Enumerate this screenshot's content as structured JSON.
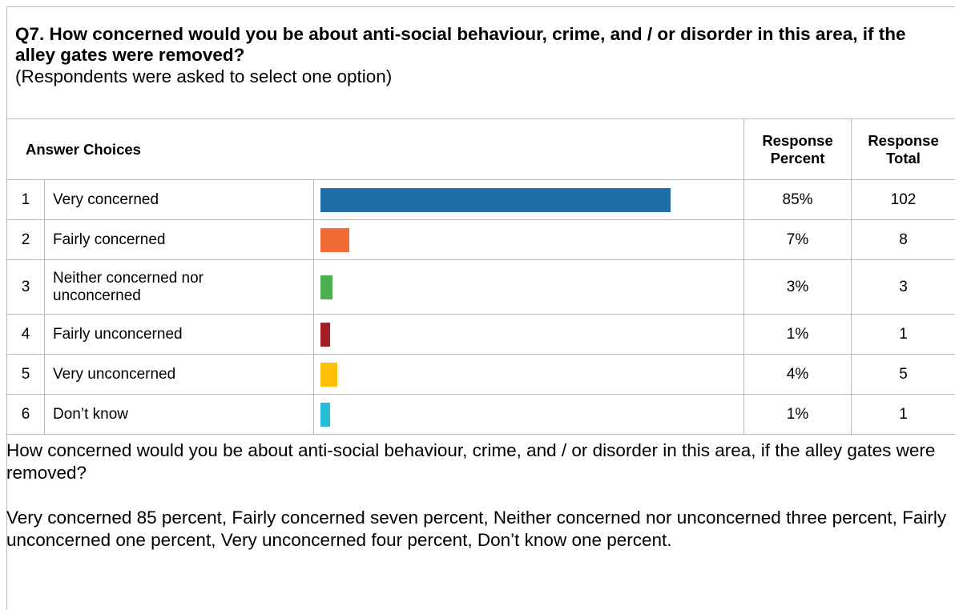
{
  "question": {
    "title": "Q7. How concerned would you be about anti-social behaviour, crime, and / or disorder in this area, if the alley gates were removed?",
    "subtitle": "(Respondents were asked to select one option)"
  },
  "table": {
    "headers": {
      "choices": "Answer Choices",
      "percent_line1": "Response",
      "percent_line2": "Percent",
      "total_line1": "Response",
      "total_line2": "Total"
    },
    "rows": [
      {
        "index": "1",
        "label": "Very concerned",
        "percent": "85%",
        "total": "102",
        "value": 85,
        "color": "#1f6ea8"
      },
      {
        "index": "2",
        "label": "Fairly concerned",
        "percent": "7%",
        "total": "8",
        "value": 7,
        "color": "#f26a36"
      },
      {
        "index": "3",
        "label": "Neither concerned nor unconcerned",
        "percent": "3%",
        "total": "3",
        "value": 3,
        "color": "#4caf50"
      },
      {
        "index": "4",
        "label": "Fairly unconcerned",
        "percent": "1%",
        "total": "1",
        "value": 1,
        "color": "#a61d24"
      },
      {
        "index": "5",
        "label": "Very unconcerned",
        "percent": "4%",
        "total": "5",
        "value": 4,
        "color": "#ffc107"
      },
      {
        "index": "6",
        "label": "Don’t know",
        "percent": "1%",
        "total": "1",
        "value": 1,
        "color": "#26bcd7"
      }
    ]
  },
  "summary": {
    "paragraph1": "How concerned would you be about anti-social behaviour, crime, and / or disorder in this area, if the alley gates were removed?",
    "paragraph2": "Very concerned 85 percent, Fairly concerned seven percent, Neither concerned nor unconcerned three percent, Fairly unconcerned one percent, Very unconcerned four percent, Don’t know one percent."
  }
}
